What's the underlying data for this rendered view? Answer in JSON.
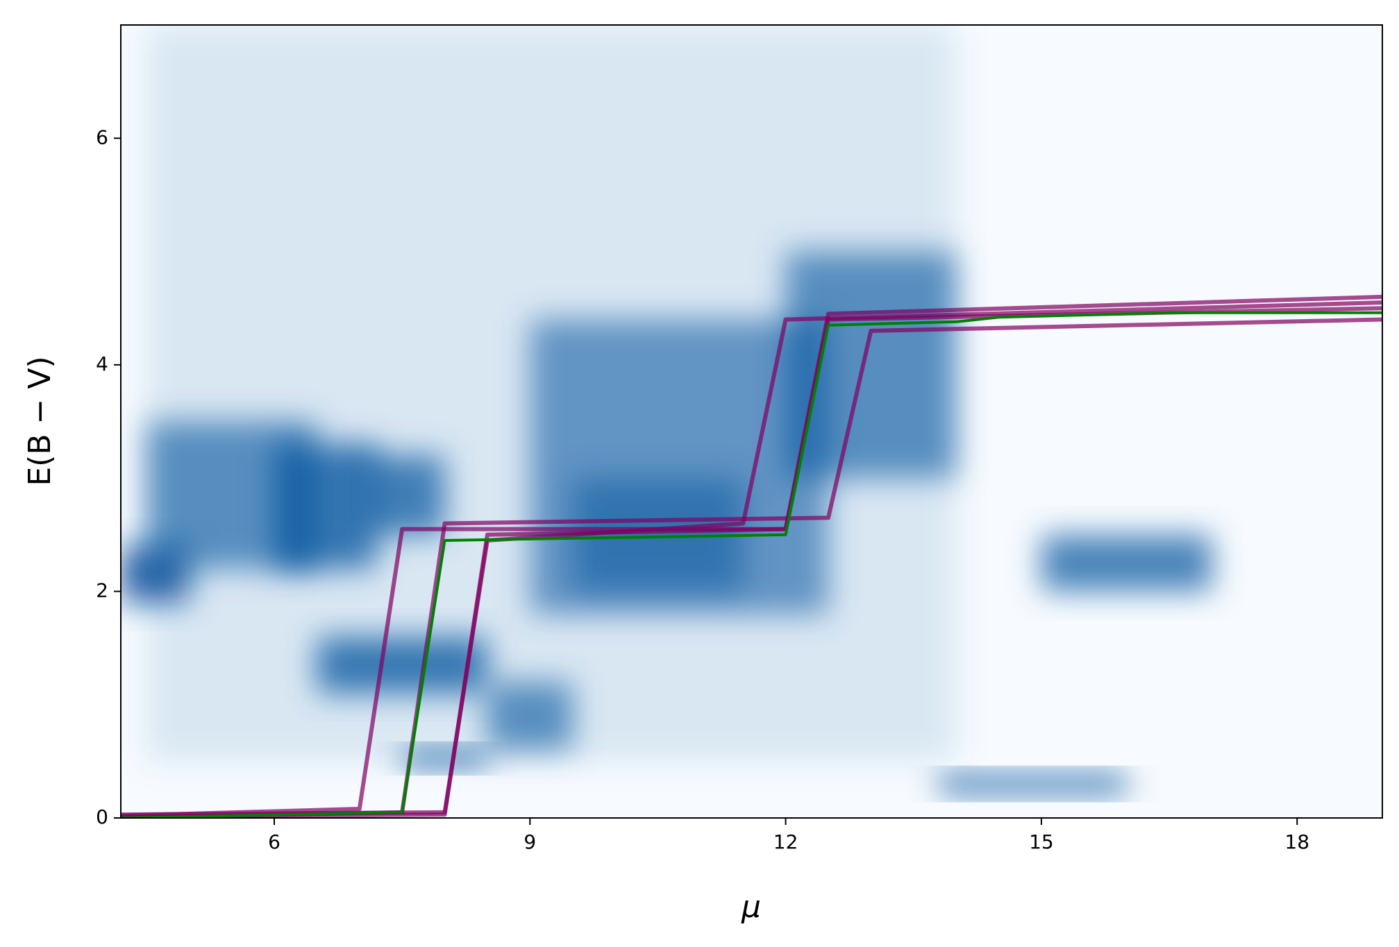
{
  "chart_data": {
    "type": "line",
    "x_label": "μ",
    "y_label": "E(B − V)",
    "xlim": [
      4.2,
      19
    ],
    "ylim": [
      0,
      7
    ],
    "xticks": [
      6,
      9,
      12,
      15,
      18
    ],
    "yticks": [
      0,
      2,
      4,
      6
    ],
    "density_color": "#08519c",
    "density": [
      {
        "x": [
          4.5,
          14.0
        ],
        "y": [
          0.5,
          7.0
        ],
        "weight": 0.12
      },
      {
        "x": [
          4.2,
          5.0
        ],
        "y": [
          1.9,
          2.4
        ],
        "weight": 0.85
      },
      {
        "x": [
          4.5,
          6.5
        ],
        "y": [
          2.2,
          3.5
        ],
        "weight": 0.6
      },
      {
        "x": [
          6.0,
          7.2
        ],
        "y": [
          2.2,
          3.3
        ],
        "weight": 0.75
      },
      {
        "x": [
          7.0,
          8.0
        ],
        "y": [
          2.5,
          3.2
        ],
        "weight": 0.7
      },
      {
        "x": [
          6.5,
          8.5
        ],
        "y": [
          1.1,
          1.6
        ],
        "weight": 0.75
      },
      {
        "x": [
          7.5,
          8.5
        ],
        "y": [
          0.45,
          0.6
        ],
        "weight": 0.85
      },
      {
        "x": [
          8.5,
          9.5
        ],
        "y": [
          0.6,
          1.2
        ],
        "weight": 0.6
      },
      {
        "x": [
          9.0,
          12.5
        ],
        "y": [
          1.8,
          4.4
        ],
        "weight": 0.55
      },
      {
        "x": [
          9.5,
          11.5
        ],
        "y": [
          2.0,
          3.0
        ],
        "weight": 0.5
      },
      {
        "x": [
          12.0,
          14.0
        ],
        "y": [
          3.0,
          5.0
        ],
        "weight": 0.6
      },
      {
        "x": [
          15.0,
          17.0
        ],
        "y": [
          2.0,
          2.5
        ],
        "weight": 0.7
      },
      {
        "x": [
          13.8,
          16.0
        ],
        "y": [
          0.22,
          0.38
        ],
        "weight": 0.85
      }
    ],
    "series": [
      {
        "color": "#800060",
        "x": [
          4.2,
          7.0,
          7.5,
          12.0,
          12.5,
          19.0
        ],
        "values": [
          0.02,
          0.08,
          2.55,
          2.55,
          4.4,
          4.5
        ]
      },
      {
        "color": "#800060",
        "x": [
          4.2,
          8.0,
          8.5,
          11.5,
          12.0,
          19.0
        ],
        "values": [
          0.03,
          0.05,
          2.45,
          2.6,
          4.4,
          4.55
        ]
      },
      {
        "color": "#800060",
        "x": [
          4.2,
          7.5,
          8.0,
          12.5,
          13.0,
          19.0
        ],
        "values": [
          0.0,
          0.05,
          2.6,
          2.65,
          4.3,
          4.4
        ]
      },
      {
        "color": "#800060",
        "x": [
          4.2,
          8.0,
          8.5,
          12.0,
          12.5,
          19.0
        ],
        "values": [
          0.01,
          0.03,
          2.5,
          2.55,
          4.45,
          4.6
        ]
      },
      {
        "color": "#008000",
        "x": [
          4.2,
          7.5,
          8.0,
          12.0,
          12.5,
          14.0,
          14.5,
          16.5,
          19.0
        ],
        "values": [
          0.0,
          0.05,
          2.45,
          2.5,
          4.35,
          4.38,
          4.42,
          4.46,
          4.46
        ]
      }
    ]
  }
}
